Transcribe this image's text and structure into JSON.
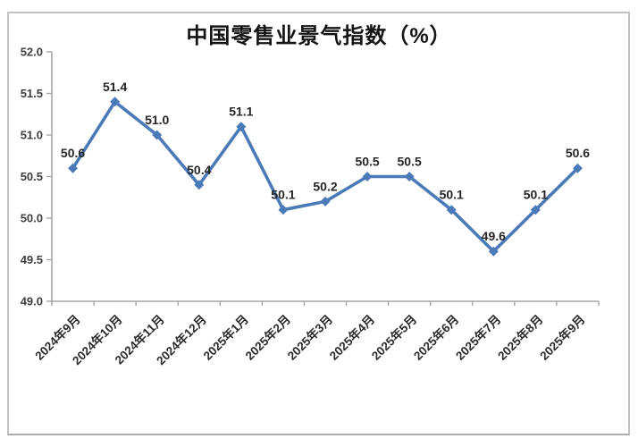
{
  "page": {
    "background": "#ffffff",
    "frame_border_color": "#c2c2c2"
  },
  "chart_data": {
    "type": "line",
    "title": "中国零售业景气指数（%）",
    "categories": [
      "2024年9月",
      "2024年10月",
      "2024年11月",
      "2024年12月",
      "2025年1月",
      "2025年2月",
      "2025年3月",
      "2025年4月",
      "2025年5月",
      "2025年6月",
      "2025年7月",
      "2025年8月",
      "2025年9月"
    ],
    "values": [
      50.6,
      51.4,
      51.0,
      50.4,
      51.1,
      50.1,
      50.2,
      50.5,
      50.5,
      50.1,
      49.6,
      50.1,
      50.6
    ],
    "data_labels": [
      "50.6",
      "51.4",
      "51.0",
      "50.4",
      "51.1",
      "50.1",
      "50.2",
      "50.5",
      "50.5",
      "50.1",
      "49.6",
      "50.1",
      "50.6"
    ],
    "xlabel": "",
    "ylabel": "",
    "ylim": [
      49.0,
      52.0
    ],
    "ytick_labels": [
      "52.0",
      "51.5",
      "51.0",
      "50.5",
      "50.0",
      "49.5",
      "49.0"
    ],
    "grid": "off",
    "legend": "none",
    "marker": "diamond",
    "line_color": "#4a7ab8",
    "axis_color": "#a6a6a6",
    "tick_label_color": "#3f3f3f",
    "data_label_color": "#262626",
    "title_color": "#141414"
  }
}
